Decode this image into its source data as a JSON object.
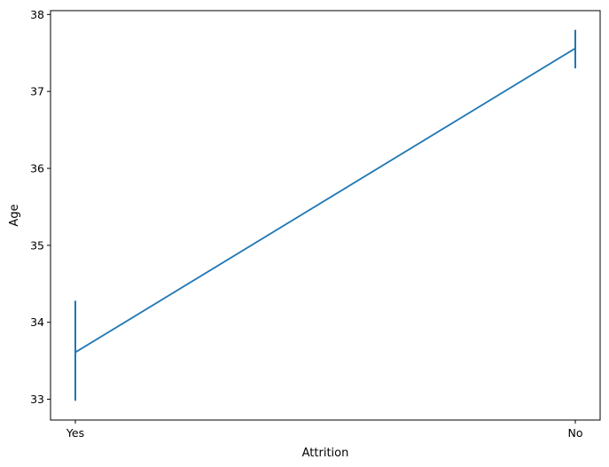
{
  "chart_data": {
    "type": "line",
    "categories": [
      "Yes",
      "No"
    ],
    "series": [
      {
        "values": [
          33.61,
          37.56
        ],
        "error_low": [
          32.98,
          37.3
        ],
        "error_high": [
          34.28,
          37.8
        ],
        "color": "#1f77b4"
      }
    ],
    "xlabel": "Attrition",
    "ylabel": "Age",
    "ylim": [
      32.73,
      38.05
    ],
    "yticks": [
      33,
      34,
      35,
      36,
      37,
      38
    ],
    "grid": false,
    "legend": "none"
  }
}
